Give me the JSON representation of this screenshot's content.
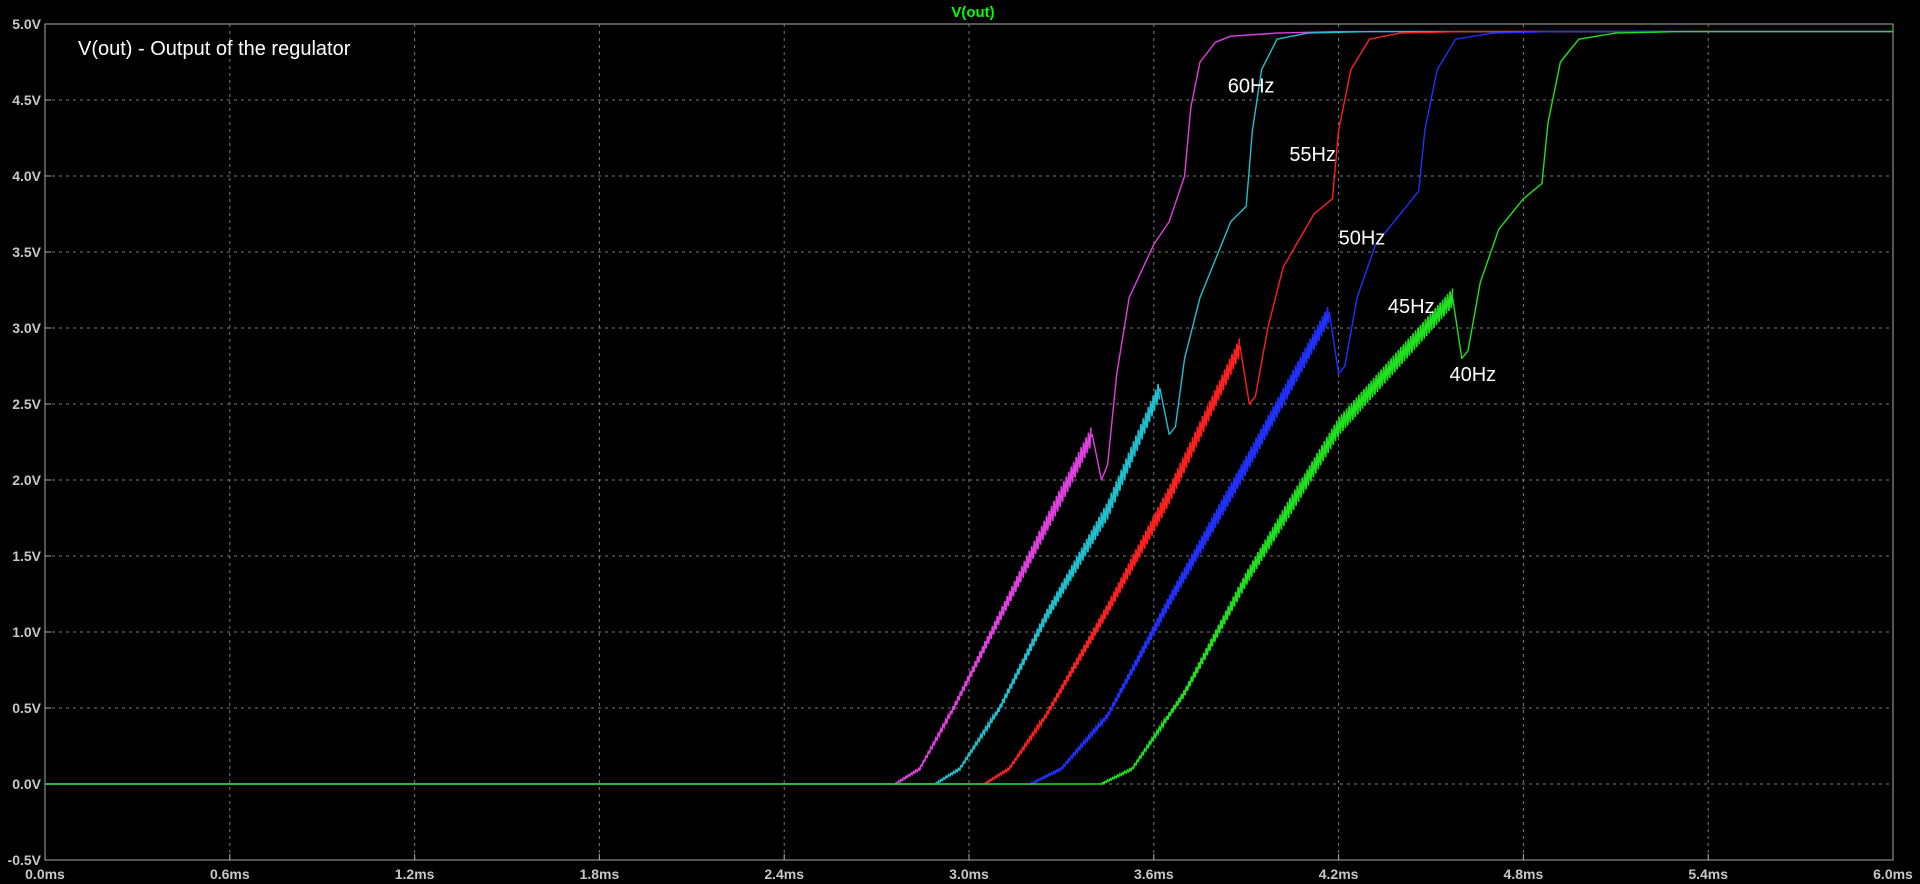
{
  "header": {
    "trace_title": "V(out)"
  },
  "annotation": {
    "text": "V(out) - Output of the regulator"
  },
  "colors": {
    "background": "#000000",
    "axis_tick_text": "#c8c8c8",
    "title": "#00ff00",
    "grid": "#7a7a7a",
    "annotation": "#ffffff"
  },
  "chart_data": {
    "type": "line",
    "title": "V(out)",
    "xlabel": "",
    "ylabel": "",
    "xlim": [
      0,
      6.0
    ],
    "ylim": [
      -0.5,
      5.0
    ],
    "grid": true,
    "x_ticks": [
      "0.0ms",
      "0.6ms",
      "1.2ms",
      "1.8ms",
      "2.4ms",
      "3.0ms",
      "3.6ms",
      "4.2ms",
      "4.8ms",
      "5.4ms",
      "6.0ms"
    ],
    "y_ticks": [
      "5.0V",
      "4.5V",
      "4.0V",
      "3.5V",
      "3.0V",
      "2.5V",
      "2.0V",
      "1.5V",
      "1.0V",
      "0.5V",
      "0.0V",
      "-0.5V"
    ],
    "x_unit": "ms",
    "y_unit": "V",
    "series": [
      {
        "name": "60Hz",
        "color": "#e040e0",
        "ripple": true,
        "ripple_until": 3.4,
        "x": [
          0.0,
          2.76,
          2.84,
          2.95,
          3.1,
          3.25,
          3.4,
          3.43,
          3.45,
          3.48,
          3.52,
          3.6,
          3.65,
          3.7,
          3.72,
          3.75,
          3.8,
          3.85,
          4.0,
          4.2,
          6.0
        ],
        "y": [
          0.0,
          0.0,
          0.1,
          0.5,
          1.1,
          1.7,
          2.3,
          2.0,
          2.1,
          2.7,
          3.2,
          3.55,
          3.7,
          4.0,
          4.45,
          4.75,
          4.88,
          4.92,
          4.94,
          4.95,
          4.95
        ]
      },
      {
        "name": "55Hz",
        "color": "#20c0d0",
        "ripple": true,
        "ripple_until": 3.62,
        "x": [
          0.0,
          2.89,
          2.97,
          3.1,
          3.25,
          3.45,
          3.62,
          3.65,
          3.67,
          3.7,
          3.75,
          3.85,
          3.9,
          3.92,
          3.95,
          4.0,
          4.1,
          4.3,
          6.0
        ],
        "y": [
          0.0,
          0.0,
          0.1,
          0.5,
          1.1,
          1.8,
          2.6,
          2.3,
          2.35,
          2.8,
          3.2,
          3.7,
          3.8,
          4.3,
          4.7,
          4.9,
          4.94,
          4.95,
          4.95
        ]
      },
      {
        "name": "50Hz",
        "color": "#ff2020",
        "ripple": true,
        "ripple_until": 3.88,
        "x": [
          0.0,
          3.05,
          3.13,
          3.25,
          3.45,
          3.65,
          3.88,
          3.91,
          3.93,
          3.97,
          4.02,
          4.12,
          4.18,
          4.2,
          4.24,
          4.3,
          4.4,
          4.6,
          6.0
        ],
        "y": [
          0.0,
          0.0,
          0.1,
          0.45,
          1.15,
          1.9,
          2.88,
          2.5,
          2.55,
          3.0,
          3.4,
          3.75,
          3.85,
          4.3,
          4.7,
          4.9,
          4.94,
          4.95,
          4.95
        ]
      },
      {
        "name": "45Hz",
        "color": "#2030ff",
        "ripple": true,
        "ripple_until": 4.17,
        "x": [
          0.0,
          3.2,
          3.3,
          3.45,
          3.65,
          3.9,
          4.17,
          4.2,
          4.22,
          4.26,
          4.32,
          4.42,
          4.46,
          4.48,
          4.52,
          4.58,
          4.7,
          4.9,
          6.0
        ],
        "y": [
          0.0,
          0.0,
          0.1,
          0.45,
          1.2,
          2.1,
          3.1,
          2.7,
          2.75,
          3.2,
          3.55,
          3.8,
          3.9,
          4.3,
          4.7,
          4.9,
          4.94,
          4.95,
          4.95
        ]
      },
      {
        "name": "40Hz",
        "color": "#20e020",
        "ripple": true,
        "ripple_until": 4.57,
        "x": [
          0.0,
          3.43,
          3.53,
          3.7,
          3.9,
          4.2,
          4.57,
          4.6,
          4.62,
          4.66,
          4.72,
          4.8,
          4.86,
          4.88,
          4.92,
          4.98,
          5.1,
          5.3,
          6.0
        ],
        "y": [
          0.0,
          0.0,
          0.1,
          0.6,
          1.35,
          2.35,
          3.2,
          2.8,
          2.85,
          3.3,
          3.65,
          3.85,
          3.95,
          4.35,
          4.75,
          4.9,
          4.94,
          4.95,
          4.95
        ]
      }
    ],
    "series_labels": [
      {
        "name": "60Hz",
        "x": 3.84,
        "y": 4.55
      },
      {
        "name": "55Hz",
        "x": 4.04,
        "y": 4.1
      },
      {
        "name": "50Hz",
        "x": 4.2,
        "y": 3.55
      },
      {
        "name": "45Hz",
        "x": 4.36,
        "y": 3.1
      },
      {
        "name": "40Hz",
        "x": 4.56,
        "y": 2.65
      }
    ]
  }
}
